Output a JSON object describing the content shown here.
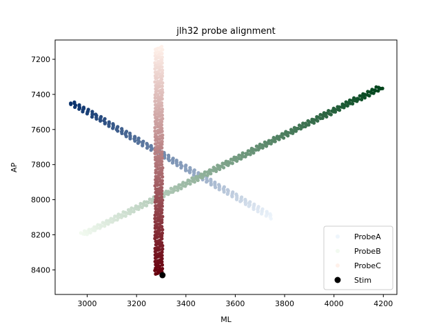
{
  "chart_data": {
    "type": "scatter",
    "title": "jlh32 probe alignment",
    "xlabel": "ML",
    "ylabel": "AP",
    "xlim": [
      2870,
      4255
    ],
    "ylim": [
      8540,
      7090
    ],
    "y_inverted": true,
    "xticks": [
      3000,
      3200,
      3400,
      3600,
      3800,
      4000,
      4200
    ],
    "yticks": [
      7200,
      7400,
      7600,
      7800,
      8000,
      8200,
      8400
    ],
    "grid": false,
    "legend_position": "lower-right",
    "series": [
      {
        "name": "ProbeA",
        "colormap": "Blues",
        "color_light": "#eef5fc",
        "color_dark": "#08306b",
        "start": [
          3750,
          8100
        ],
        "end": [
          2935,
          7445
        ],
        "points_estimate": 190
      },
      {
        "name": "ProbeB",
        "colormap": "Greens",
        "color_light": "#f2faf0",
        "color_dark": "#00441b",
        "start": [
          2980,
          8200
        ],
        "end": [
          4190,
          7360
        ],
        "points_estimate": 280
      },
      {
        "name": "ProbeC",
        "colormap": "Reds",
        "color_light": "#fff1ea",
        "color_dark": "#67000d",
        "start": [
          3290,
          7130
        ],
        "end": [
          3290,
          8425
        ],
        "points_estimate": 280
      },
      {
        "name": "Stim",
        "color": "#000000",
        "points": [
          [
            3305,
            8430
          ]
        ]
      }
    ]
  }
}
